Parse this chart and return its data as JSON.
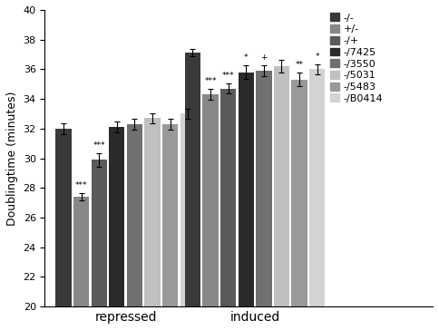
{
  "groups": [
    "repressed",
    "induced"
  ],
  "series": [
    "-/-",
    "+/-",
    "-/+",
    "-/7425",
    "-/3550",
    "-/5031",
    "-/5483",
    "-/B0414"
  ],
  "colors": [
    "#3a3a3a",
    "#888888",
    "#5a5a5a",
    "#2a2a2a",
    "#707070",
    "#c0c0c0",
    "#999999",
    "#d3d3d3"
  ],
  "values": {
    "repressed": [
      32.0,
      27.4,
      29.9,
      32.1,
      32.3,
      32.7,
      32.3,
      33.0
    ],
    "induced": [
      37.1,
      34.3,
      34.7,
      35.8,
      35.9,
      36.2,
      35.3,
      36.0
    ]
  },
  "errors": {
    "repressed": [
      0.35,
      0.25,
      0.45,
      0.35,
      0.35,
      0.35,
      0.35,
      0.35
    ],
    "induced": [
      0.25,
      0.35,
      0.35,
      0.45,
      0.35,
      0.45,
      0.45,
      0.35
    ]
  },
  "annotations": {
    "repressed": [
      "",
      "***",
      "***",
      "",
      "",
      "",
      "",
      ""
    ],
    "induced": [
      "",
      "***",
      "***",
      "*",
      "+",
      "",
      "**",
      "*"
    ]
  },
  "ylabel": "Doublingtime (minutes)",
  "ylim": [
    20,
    40
  ],
  "yticks": [
    20,
    22,
    24,
    26,
    28,
    30,
    32,
    34,
    36,
    38,
    40
  ],
  "annotation_fontsize": 6.5,
  "label_fontsize": 9,
  "tick_fontsize": 8,
  "legend_fontsize": 8
}
